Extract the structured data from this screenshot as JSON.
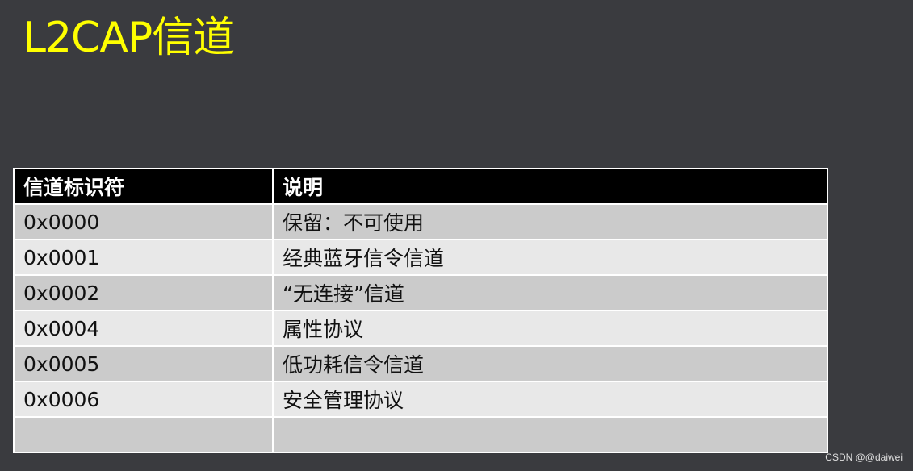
{
  "title": "L2CAP信道",
  "table": {
    "headers": [
      "信道标识符",
      "说明"
    ],
    "rows": [
      [
        "0x0000",
        "保留：不可使用"
      ],
      [
        "0x0001",
        "经典蓝牙信令信道"
      ],
      [
        "0x0002",
        "“无连接”信道"
      ],
      [
        "0x0004",
        "属性协议"
      ],
      [
        "0x0005",
        "低功耗信令信道"
      ],
      [
        "0x0006",
        "安全管理协议"
      ],
      [
        "",
        ""
      ]
    ]
  },
  "watermark": "CSDN @@daiwei",
  "colors": {
    "title": "#ffff00",
    "background": "#3a3b3f",
    "header_bg": "#000000"
  }
}
